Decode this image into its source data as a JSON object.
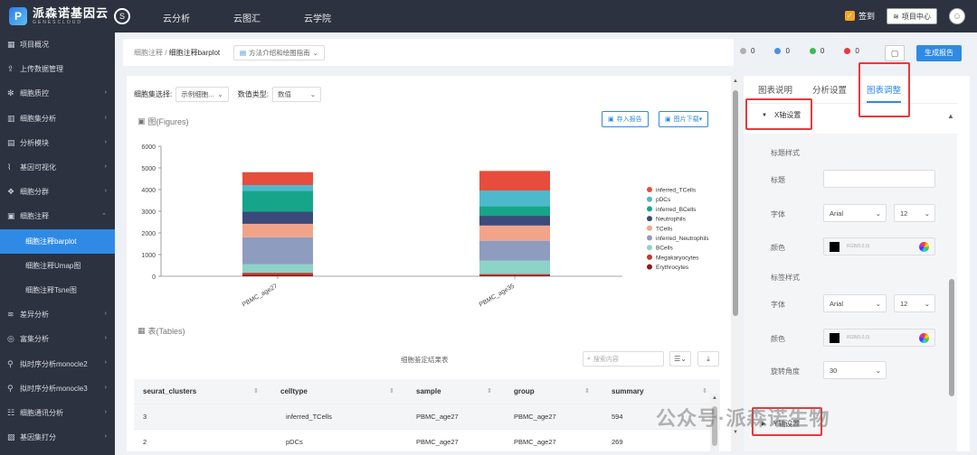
{
  "topbar": {
    "logo_main": "派森诺基因云",
    "logo_sub": "GENESCLOUD",
    "nav": [
      "云分析",
      "云图汇",
      "云学院"
    ],
    "signin": "签到",
    "project_center": "项目中心"
  },
  "sidebar": {
    "items": [
      {
        "label": "项目概况",
        "icon": "grid-icon"
      },
      {
        "label": "上传数据管理",
        "icon": "upload-icon"
      },
      {
        "label": "细胞质控",
        "icon": "gear-icon",
        "chev": "›"
      },
      {
        "label": "细胞集分析",
        "icon": "chart-icon",
        "chev": "›"
      },
      {
        "label": "分析模块",
        "icon": "module-icon",
        "chev": "›"
      },
      {
        "label": "基因可视化",
        "icon": "gene-icon",
        "chev": "›"
      },
      {
        "label": "细胞分群",
        "icon": "cluster-icon",
        "chev": "›"
      },
      {
        "label": "细胞注释",
        "icon": "annotation-icon",
        "chev": "⌃"
      },
      {
        "label": "细胞注释barplot",
        "sub": true,
        "active": true
      },
      {
        "label": "细胞注释Umap图",
        "sub": true
      },
      {
        "label": "细胞注释Tsne图",
        "sub": true
      },
      {
        "label": "差异分析",
        "icon": "diff-icon",
        "chev": "›"
      },
      {
        "label": "富集分析",
        "icon": "enrich-icon",
        "chev": "›"
      },
      {
        "label": "拟时序分析monocle2",
        "icon": "timeline-icon",
        "chev": "›"
      },
      {
        "label": "拟时序分析monocle3",
        "icon": "timeline-icon",
        "chev": "›"
      },
      {
        "label": "细胞通讯分析",
        "icon": "comm-icon",
        "chev": "›"
      },
      {
        "label": "基因集打分",
        "icon": "score-icon",
        "chev": "›"
      }
    ]
  },
  "header": {
    "breadcrumb_parent": "细胞注释",
    "breadcrumb_sep": " / ",
    "breadcrumb_current": "细胞注释barplot",
    "guide": "方法介绍和绘图指南",
    "stats": [
      {
        "value": "0",
        "color": "#b0b0b0"
      },
      {
        "value": "0",
        "color": "#4a90e2"
      },
      {
        "value": "0",
        "color": "#3cba54"
      },
      {
        "value": "0",
        "color": "#e8383d"
      }
    ],
    "generate_report": "生成报告"
  },
  "filters": {
    "cellset_label": "细胞集选择:",
    "cellset_value": "示例细胞...",
    "valuetype_label": "数值类型:",
    "valuetype_value": "数值"
  },
  "figures": {
    "title": "图(Figures)",
    "save_report": "存入报告",
    "download": "图片下载▾"
  },
  "chart_data": {
    "type": "bar",
    "stacked": true,
    "categories": [
      "PBMC_age27",
      "PBMC_age35"
    ],
    "ylim": [
      0,
      6000
    ],
    "yticks": [
      0,
      1000,
      2000,
      3000,
      4000,
      5000,
      6000
    ],
    "legend_position": "right",
    "series": [
      {
        "name": "Erythrocytes",
        "color": "#8b1a1a",
        "values": [
          60,
          40
        ]
      },
      {
        "name": "Megakaryocytes",
        "color": "#c0392b",
        "values": [
          100,
          60
        ]
      },
      {
        "name": "BCells",
        "color": "#8dd3c7",
        "values": [
          390,
          620
        ]
      },
      {
        "name": "inferred_Neutrophils",
        "color": "#8e9cc0",
        "values": [
          1250,
          920
        ]
      },
      {
        "name": "TCells",
        "color": "#f2a48a",
        "values": [
          620,
          700
        ]
      },
      {
        "name": "Neutrophils",
        "color": "#3a4a7a",
        "values": [
          560,
          450
        ]
      },
      {
        "name": "inferred_BCells",
        "color": "#17a589",
        "values": [
          960,
          450
        ]
      },
      {
        "name": "pDCs",
        "color": "#4eb8cc",
        "values": [
          269,
          720
        ]
      },
      {
        "name": "inferred_TCells",
        "color": "#e74c3c",
        "values": [
          594,
          900
        ]
      }
    ]
  },
  "tables": {
    "title": "表(Tables)",
    "caption": "细胞鉴定结果表",
    "search_placeholder": "搜索内容",
    "columns": [
      "seurat_clusters",
      "celltype",
      "sample",
      "group",
      "summary"
    ],
    "rows": [
      [
        "3",
        "inferred_TCells",
        "PBMC_age27",
        "PBMC_age27",
        "594"
      ],
      [
        "2",
        "pDCs",
        "PBMC_age27",
        "PBMC_age27",
        "269"
      ]
    ]
  },
  "right_panel": {
    "tabs": [
      "图表说明",
      "分析设置",
      "图表调整"
    ],
    "active_tab": 2,
    "x_axis_section": "X轴设置",
    "title_style": "标题样式",
    "title_label": "标题",
    "title_value": "",
    "font_label": "字体",
    "font_value": "Arial",
    "size_value": "12",
    "color_label": "颜色",
    "color_value": "RGB(0,0,0)",
    "tick_style": "标签样式",
    "tick_font_value": "Arial",
    "tick_size_value": "12",
    "tick_color_value": "RGB(0,0,0)",
    "rotate_label": "旋转角度",
    "rotate_value": "30",
    "y_axis_section": "Y轴设置"
  },
  "watermark": "公众号·派森诺生物"
}
